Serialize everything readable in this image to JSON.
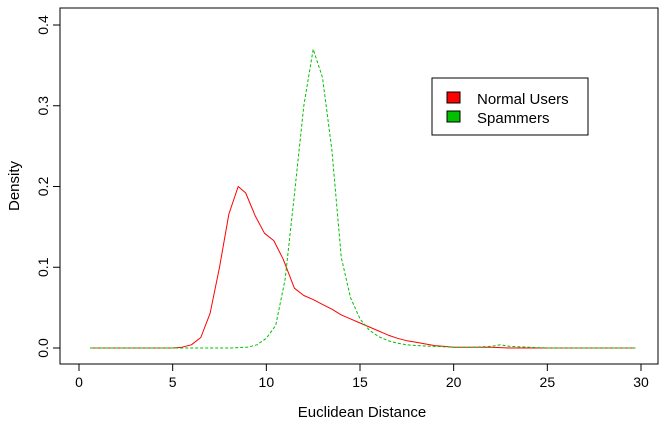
{
  "chart_data": {
    "type": "line",
    "title": "",
    "xlabel": "Euclidean Distance",
    "ylabel": "Density",
    "xlim": [
      0,
      30
    ],
    "ylim": [
      0,
      0.4
    ],
    "x_ticks": [
      "0",
      "5",
      "10",
      "15",
      "20",
      "25",
      "30"
    ],
    "y_ticks": [
      "0.0",
      "0.1",
      "0.2",
      "0.3",
      "0.4"
    ],
    "grid": false,
    "legend_position": "top-right",
    "series": [
      {
        "name": "Normal Users",
        "color": "#ff0000",
        "line_style": "solid",
        "x": [
          0.6,
          1.0,
          2.0,
          3.0,
          4.0,
          5.0,
          5.5,
          6.0,
          6.5,
          7.0,
          7.5,
          8.0,
          8.5,
          8.9,
          9.4,
          9.9,
          10.4,
          10.9,
          11.5,
          12.0,
          12.5,
          13.0,
          13.5,
          14.0,
          14.5,
          15.0,
          15.5,
          16.0,
          16.5,
          17.0,
          17.5,
          18.0,
          18.5,
          19.0,
          19.5,
          20.0,
          21.0,
          22.0,
          23.0,
          24.0,
          25.0,
          26.0,
          27.0,
          28.0,
          29.0,
          29.7
        ],
        "y": [
          0.0,
          0.0,
          0.0,
          0.0,
          0.0,
          0.0,
          0.001,
          0.004,
          0.013,
          0.043,
          0.1,
          0.166,
          0.2,
          0.192,
          0.164,
          0.142,
          0.133,
          0.11,
          0.074,
          0.065,
          0.06,
          0.054,
          0.048,
          0.041,
          0.036,
          0.031,
          0.026,
          0.021,
          0.016,
          0.012,
          0.009,
          0.007,
          0.005,
          0.003,
          0.002,
          0.001,
          0.001,
          0.001,
          0.0,
          0.0,
          0.0,
          0.0,
          0.0,
          0.0,
          0.0,
          0.0
        ]
      },
      {
        "name": "Spammers",
        "color": "#00c000",
        "line_style": "dashed",
        "x": [
          0.6,
          2.0,
          4.0,
          6.0,
          8.0,
          9.0,
          9.5,
          10.0,
          10.5,
          11.0,
          11.5,
          12.0,
          12.5,
          13.0,
          13.5,
          14.0,
          14.5,
          15.0,
          15.5,
          16.0,
          16.5,
          17.0,
          17.5,
          18.0,
          19.0,
          20.0,
          21.0,
          22.0,
          22.5,
          23.0,
          24.0,
          25.0,
          26.0,
          27.0,
          28.0,
          29.0,
          29.7
        ],
        "y": [
          0.0,
          0.0,
          0.0,
          0.0,
          0.0,
          0.001,
          0.004,
          0.012,
          0.028,
          0.085,
          0.19,
          0.3,
          0.37,
          0.335,
          0.245,
          0.112,
          0.062,
          0.036,
          0.022,
          0.014,
          0.009,
          0.006,
          0.004,
          0.003,
          0.002,
          0.001,
          0.001,
          0.002,
          0.004,
          0.002,
          0.001,
          0.0,
          0.0,
          0.0,
          0.0,
          0.0,
          0.0
        ]
      }
    ]
  }
}
